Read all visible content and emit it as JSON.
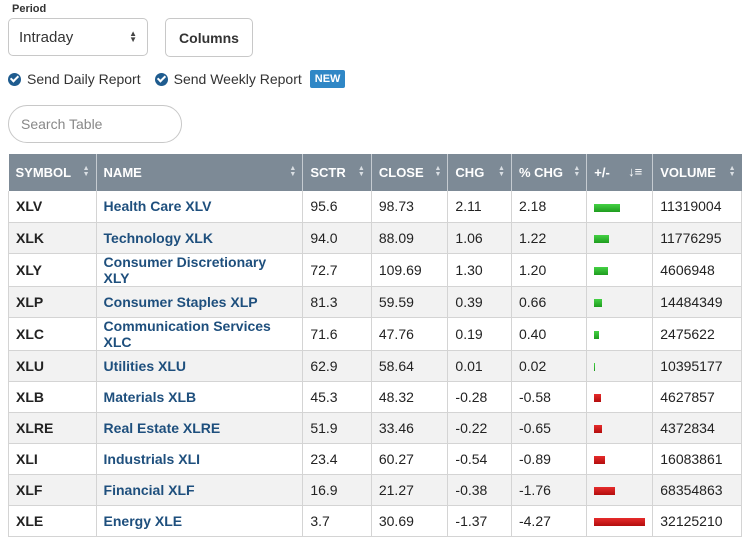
{
  "controls": {
    "period_label": "Period",
    "period_value": "Intraday",
    "columns_label": "Columns",
    "daily_report_label": "Send Daily Report",
    "weekly_report_label": "Send Weekly Report",
    "new_badge": "NEW",
    "search_placeholder": "Search Table"
  },
  "table": {
    "headers": {
      "symbol": "SYMBOL",
      "name": "NAME",
      "sctr": "SCTR",
      "close": "CLOSE",
      "chg": "CHG",
      "pct_chg": "% CHG",
      "plus_minus": "+/-",
      "volume": "VOLUME"
    },
    "rows": [
      {
        "symbol": "XLV",
        "name": "Health Care XLV",
        "sctr": "95.6",
        "close": "98.73",
        "chg": "2.11",
        "pct_chg": "2.18",
        "bar": 2.18,
        "volume": "11319004"
      },
      {
        "symbol": "XLK",
        "name": "Technology XLK",
        "sctr": "94.0",
        "close": "88.09",
        "chg": "1.06",
        "pct_chg": "1.22",
        "bar": 1.22,
        "volume": "11776295"
      },
      {
        "symbol": "XLY",
        "name": "Consumer Discretionary XLY",
        "sctr": "72.7",
        "close": "109.69",
        "chg": "1.30",
        "pct_chg": "1.20",
        "bar": 1.2,
        "volume": "4606948"
      },
      {
        "symbol": "XLP",
        "name": "Consumer Staples XLP",
        "sctr": "81.3",
        "close": "59.59",
        "chg": "0.39",
        "pct_chg": "0.66",
        "bar": 0.66,
        "volume": "14484349"
      },
      {
        "symbol": "XLC",
        "name": "Communication Services XLC",
        "sctr": "71.6",
        "close": "47.76",
        "chg": "0.19",
        "pct_chg": "0.40",
        "bar": 0.4,
        "volume": "2475622"
      },
      {
        "symbol": "XLU",
        "name": "Utilities XLU",
        "sctr": "62.9",
        "close": "58.64",
        "chg": "0.01",
        "pct_chg": "0.02",
        "bar": 0.02,
        "volume": "10395177"
      },
      {
        "symbol": "XLB",
        "name": "Materials XLB",
        "sctr": "45.3",
        "close": "48.32",
        "chg": "-0.28",
        "pct_chg": "-0.58",
        "bar": -0.58,
        "volume": "4627857"
      },
      {
        "symbol": "XLRE",
        "name": "Real Estate XLRE",
        "sctr": "51.9",
        "close": "33.46",
        "chg": "-0.22",
        "pct_chg": "-0.65",
        "bar": -0.65,
        "volume": "4372834"
      },
      {
        "symbol": "XLI",
        "name": "Industrials XLI",
        "sctr": "23.4",
        "close": "60.27",
        "chg": "-0.54",
        "pct_chg": "-0.89",
        "bar": -0.89,
        "volume": "16083861"
      },
      {
        "symbol": "XLF",
        "name": "Financial XLF",
        "sctr": "16.9",
        "close": "21.27",
        "chg": "-0.38",
        "pct_chg": "-1.76",
        "bar": -1.76,
        "volume": "68354863"
      },
      {
        "symbol": "XLE",
        "name": "Energy XLE",
        "sctr": "3.7",
        "close": "30.69",
        "chg": "-1.37",
        "pct_chg": "-4.27",
        "bar": -4.27,
        "volume": "32125210"
      }
    ]
  },
  "colors": {
    "header_bg": "#7d8a96",
    "name_link": "#1e4f7d",
    "positive_bar": "#2cb52c",
    "negative_bar": "#d41818",
    "badge": "#2f87c6"
  }
}
